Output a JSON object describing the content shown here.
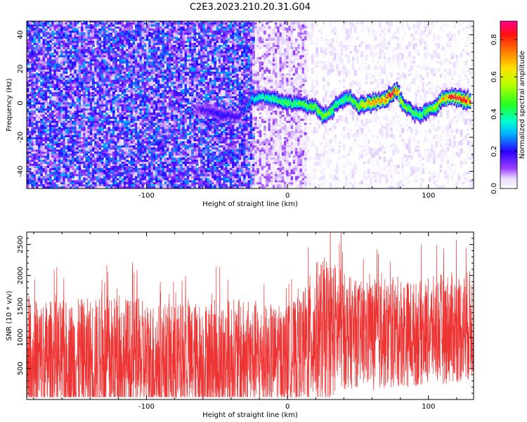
{
  "figure": {
    "title": "C2E3.2023.210.20.31.G04"
  },
  "chart_data": [
    {
      "type": "heatmap",
      "xlabel": "Height of straight line (km)",
      "ylabel": "Frequency (Hz)",
      "xlim": [
        -185,
        132
      ],
      "ylim": [
        -50,
        48
      ],
      "xticks": [
        -100,
        0,
        100
      ],
      "yticks": [
        -40,
        -20,
        0,
        20,
        40
      ],
      "grid": false,
      "colorbar": {
        "label": "Normalized spectral amplitude",
        "range": [
          0.0,
          0.9
        ],
        "ticks": [
          0.0,
          0.2,
          0.4,
          0.6,
          0.8
        ],
        "colormap": "gist_ncar_like"
      },
      "regions": [
        {
          "description": "dense purple noise speckle",
          "x_range": [
            -185,
            -25
          ],
          "amplitude": [
            0.05,
            0.3
          ]
        },
        {
          "description": "sparse faint speckle",
          "x_range": [
            -25,
            12
          ],
          "amplitude": [
            0.02,
            0.12
          ]
        },
        {
          "description": "mostly empty with faint speckle",
          "x_range": [
            12,
            132
          ],
          "amplitude": [
            0.0,
            0.06
          ]
        }
      ],
      "ridge": {
        "x": [
          -65,
          -55,
          -45,
          -35,
          -25,
          -20,
          -10,
          0,
          10,
          15,
          20,
          25,
          30,
          35,
          40,
          45,
          50,
          55,
          60,
          65,
          70,
          75,
          78,
          80,
          85,
          90,
          95,
          100,
          105,
          110,
          115,
          120,
          125,
          130
        ],
        "frequency": [
          -3,
          -5,
          -7,
          -8,
          2,
          4,
          2,
          0,
          -1,
          -2,
          -2,
          -8,
          -6,
          0,
          2,
          3,
          -2,
          -1,
          0,
          1,
          2,
          6,
          8,
          1,
          -3,
          -6,
          -7,
          -4,
          -2,
          2,
          4,
          3,
          2,
          1
        ],
        "peak_amplitude": [
          0.15,
          0.2,
          0.22,
          0.2,
          0.35,
          0.45,
          0.45,
          0.5,
          0.5,
          0.5,
          0.55,
          0.55,
          0.55,
          0.45,
          0.45,
          0.5,
          0.6,
          0.7,
          0.75,
          0.8,
          0.85,
          0.9,
          0.9,
          0.6,
          0.55,
          0.5,
          0.5,
          0.55,
          0.6,
          0.7,
          0.85,
          0.9,
          0.9,
          0.9
        ]
      }
    },
    {
      "type": "line",
      "xlabel": "Height of straight line (km)",
      "ylabel": "SNR (10 * v/v)",
      "xlim": [
        -185,
        132
      ],
      "ylim": [
        0,
        2700
      ],
      "xticks": [
        -100,
        0,
        100
      ],
      "yticks": [
        500,
        1000,
        1500,
        2000,
        2500
      ],
      "grid": false,
      "color": "#ee3333",
      "series": [
        {
          "x": [
            -185,
            -160,
            -140,
            -120,
            -100,
            -80,
            -60,
            -40,
            -20,
            0,
            10,
            20,
            30,
            40,
            50,
            60,
            70,
            80,
            90,
            100,
            110,
            120,
            132
          ],
          "mean_snr": [
            620,
            640,
            650,
            650,
            620,
            610,
            640,
            650,
            660,
            700,
            800,
            1050,
            1150,
            1100,
            1050,
            1050,
            1050,
            1100,
            1050,
            1100,
            1150,
            1150,
            1200
          ],
          "envelope_max": [
            1700,
            1650,
            1700,
            1750,
            1650,
            1600,
            1650,
            1700,
            1600,
            1550,
            1750,
            2300,
            2400,
            2100,
            1950,
            2000,
            2000,
            2050,
            1950,
            2000,
            2100,
            2100,
            2150
          ]
        }
      ]
    }
  ]
}
